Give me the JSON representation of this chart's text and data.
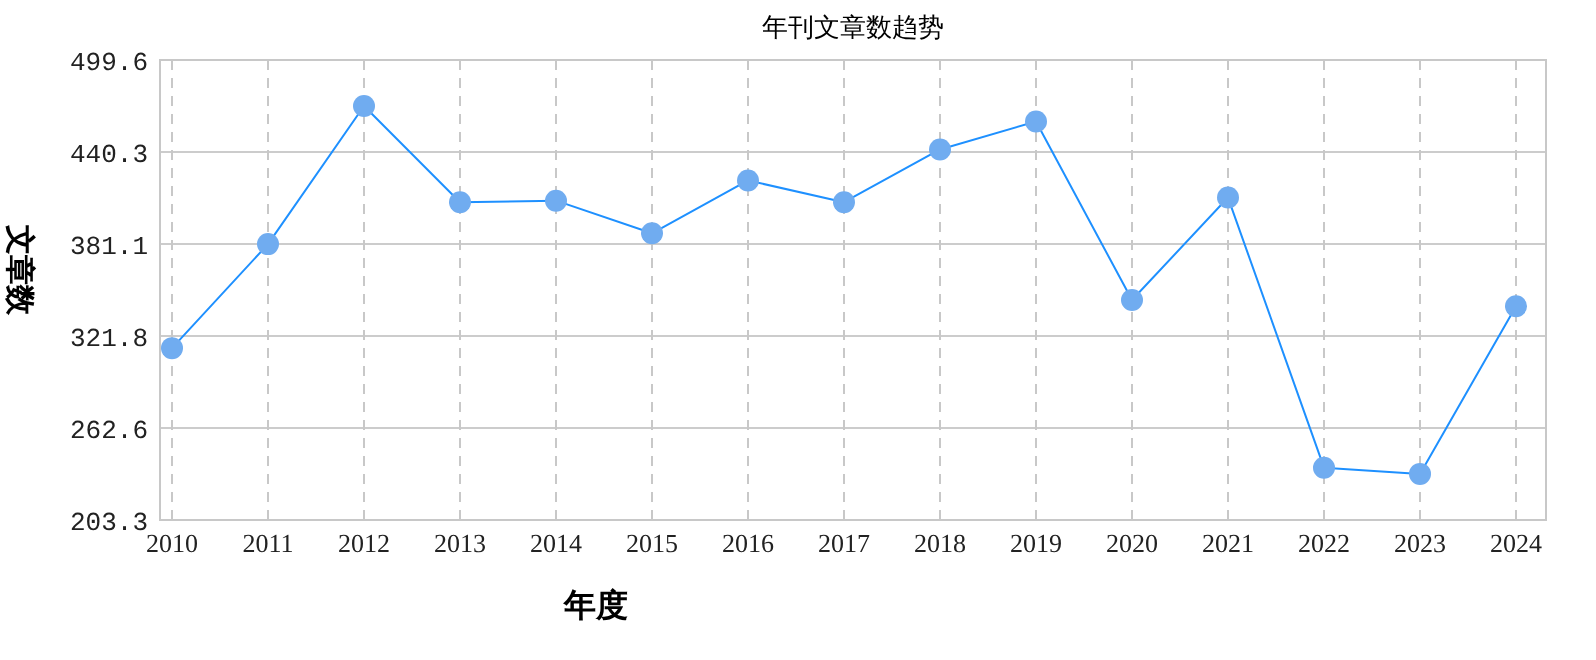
{
  "chart_data": {
    "type": "line",
    "title": "年刊文章数趋势",
    "xlabel": "年度",
    "ylabel": "文章数",
    "categories": [
      "2010",
      "2011",
      "2012",
      "2013",
      "2014",
      "2015",
      "2016",
      "2017",
      "2018",
      "2019",
      "2020",
      "2021",
      "2022",
      "2023",
      "2024"
    ],
    "series": [
      {
        "color": "#1e90ff",
        "values": [
          314,
          381,
          470,
          408,
          409,
          388,
          422,
          408,
          442,
          460,
          345,
          411,
          237,
          233,
          341
        ]
      }
    ],
    "ylim": [
      203.3,
      499.6
    ],
    "yticks": [
      203.3,
      262.6,
      321.8,
      381.1,
      440.3,
      499.6
    ],
    "grid": true,
    "marker": "circle",
    "line_style": "solid"
  }
}
